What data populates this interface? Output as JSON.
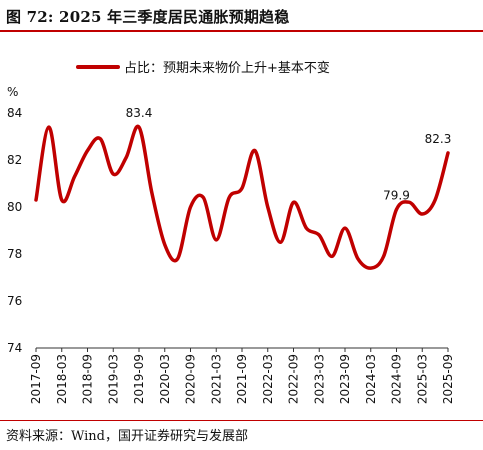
{
  "header": {
    "title": "图 72:  2025 年三季度居民通胀预期趋稳"
  },
  "footer": {
    "source": "资料来源：Wind，国开证券研究与发展部"
  },
  "colors": {
    "accent": "#c00000",
    "line": "#c00000"
  },
  "chart_data": {
    "type": "line",
    "title": "",
    "ylabel": "%",
    "xlabel": "",
    "ylim": [
      74,
      84
    ],
    "yticks": [
      74,
      76,
      78,
      80,
      82,
      84
    ],
    "grid": false,
    "legend_position": "top",
    "x": [
      "2017-09",
      "2017-12",
      "2018-03",
      "2018-06",
      "2018-09",
      "2018-12",
      "2019-03",
      "2019-06",
      "2019-09",
      "2019-12",
      "2020-03",
      "2020-06",
      "2020-09",
      "2020-12",
      "2021-03",
      "2021-06",
      "2021-09",
      "2021-12",
      "2022-03",
      "2022-06",
      "2022-09",
      "2022-12",
      "2023-03",
      "2023-06",
      "2023-09",
      "2023-12",
      "2024-03",
      "2024-06",
      "2024-09",
      "2024-12",
      "2025-03",
      "2025-06",
      "2025-09"
    ],
    "xtick_labels": [
      "2017-09",
      "2018-03",
      "2018-09",
      "2019-03",
      "2019-09",
      "2020-03",
      "2020-09",
      "2021-03",
      "2021-09",
      "2022-03",
      "2022-09",
      "2023-03",
      "2023-09",
      "2024-03",
      "2024-09",
      "2025-03",
      "2025-09"
    ],
    "series": [
      {
        "name": "占比：预期未来物价上升+基本不变",
        "values": [
          80.3,
          83.4,
          80.3,
          81.3,
          82.4,
          82.9,
          81.4,
          82.1,
          83.4,
          80.6,
          78.4,
          77.8,
          80.0,
          80.4,
          78.6,
          80.4,
          80.8,
          82.4,
          80.0,
          78.5,
          80.2,
          79.1,
          78.8,
          77.9,
          79.1,
          77.8,
          77.4,
          77.9,
          79.9,
          80.2,
          79.7,
          80.3,
          82.3
        ]
      }
    ],
    "annotations": [
      {
        "x": "2019-09",
        "y": 83.4,
        "text": "83.4"
      },
      {
        "x": "2024-09",
        "y": 79.9,
        "text": "79.9"
      },
      {
        "x": "2025-09",
        "y": 82.3,
        "text": "82.3"
      }
    ]
  }
}
